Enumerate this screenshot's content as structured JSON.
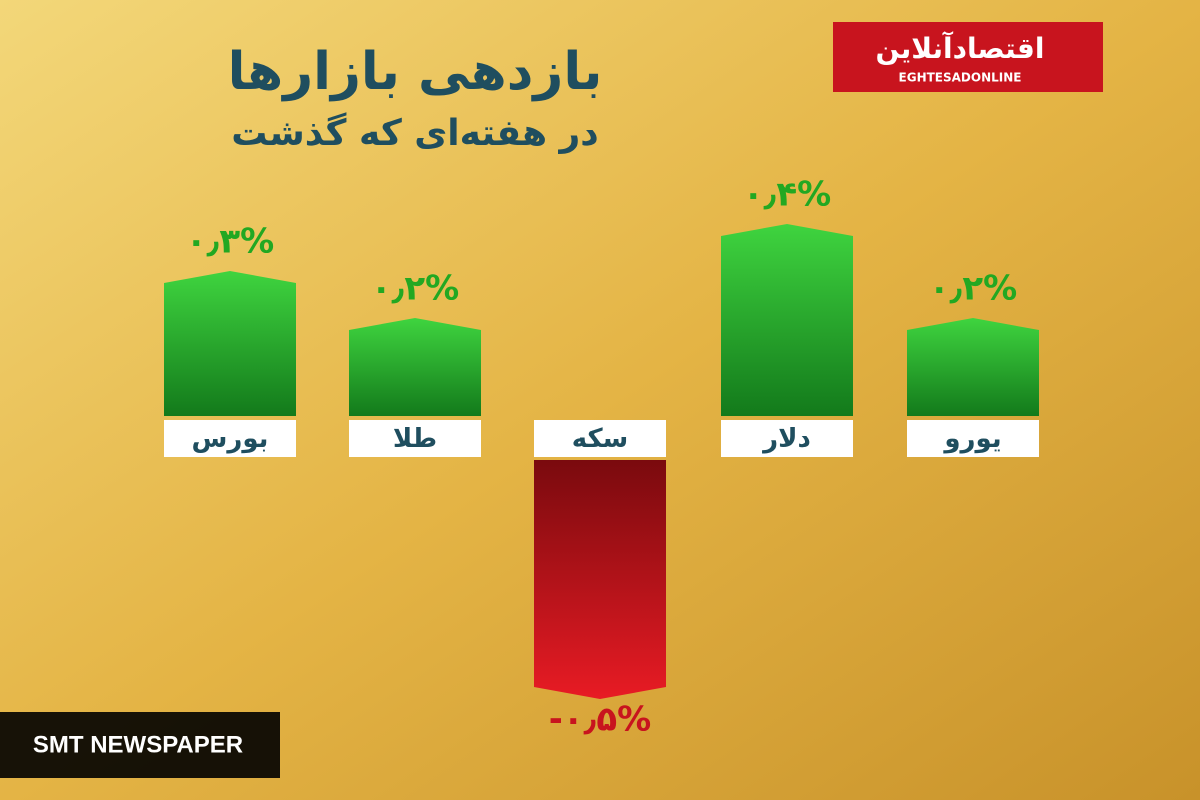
{
  "chart_data": {
    "type": "bar",
    "title": "بازدهی بازارها",
    "subtitle": "در هفته‌ای که گذشت",
    "categories": [
      "بورس",
      "طلا",
      "سکه",
      "دلار",
      "یورو"
    ],
    "values": [
      0.3,
      0.2,
      -0.5,
      0.4,
      0.2
    ],
    "value_labels": [
      "۰٫۳%",
      "۰٫۲%",
      "-۰٫۵%",
      "۰٫۴%",
      "۰٫۲%"
    ],
    "color": "#22a822",
    "negative_color": "#c8141e"
  },
  "logo": {
    "name": "اقتصادآنلاین",
    "latin": "EGHTESADONLINE"
  },
  "watermark": "SMT NEWSPAPER"
}
